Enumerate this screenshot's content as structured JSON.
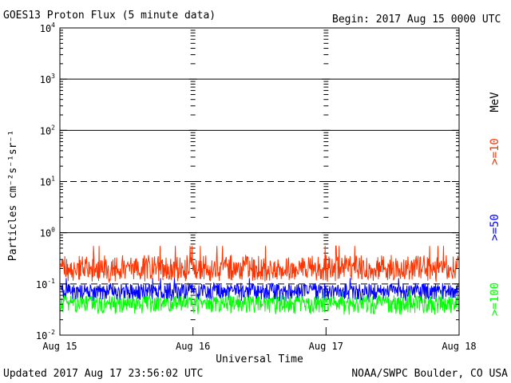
{
  "header": {
    "title": "GOES13 Proton Flux (5 minute data)",
    "begin": "Begin: 2017 Aug 15 0000 UTC"
  },
  "footer": {
    "updated": "Updated 2017 Aug 17 23:56:02 UTC",
    "source": "NOAA/SWPC Boulder, CO USA"
  },
  "chart_data": {
    "type": "line",
    "xlabel": "Universal Time",
    "ylabel": "Particles cm⁻²s⁻¹sr⁻¹",
    "y_scale": "log",
    "ylim": [
      0.01,
      10000
    ],
    "x_ticks": [
      "Aug 15",
      "Aug 16",
      "Aug 17",
      "Aug 18"
    ],
    "y_ticks": [
      {
        "base": "10",
        "exp": "4",
        "value": 10000
      },
      {
        "base": "10",
        "exp": "3",
        "value": 1000
      },
      {
        "base": "10",
        "exp": "2",
        "value": 100
      },
      {
        "base": "10",
        "exp": "1",
        "value": 10
      },
      {
        "base": "10",
        "exp": "0",
        "value": 1
      },
      {
        "base": "10",
        "exp": "-1",
        "value": 0.1
      },
      {
        "base": "10",
        "exp": "-2",
        "value": 0.01
      }
    ],
    "gridlines": {
      "solid": [
        1000,
        100,
        1
      ],
      "dashed": [
        10,
        0.1
      ]
    },
    "unit_label": "MeV",
    "series": [
      {
        "name": ">=10",
        "color": "#ff3300",
        "typical_value": 0.18,
        "min": 0.11,
        "max": 0.55
      },
      {
        "name": ">=50",
        "color": "#0000ff",
        "typical_value": 0.07,
        "min": 0.045,
        "max": 0.13
      },
      {
        "name": ">=100",
        "color": "#00ff00",
        "typical_value": 0.04,
        "min": 0.025,
        "max": 0.075
      }
    ]
  }
}
